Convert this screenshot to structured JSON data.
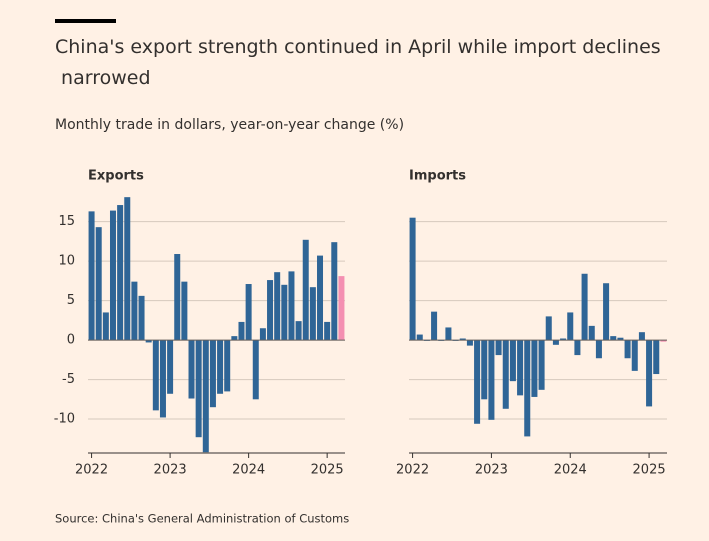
{
  "title": "China's export strength continued in April while import declines narrowed",
  "subtitle": "Monthly trade in dollars, year-on-year change (%)",
  "source": "Source: China's General Administration of Customs",
  "chart_data": [
    {
      "type": "bar",
      "title": "Exports",
      "categories": [
        null,
        null,
        null,
        null,
        null,
        null,
        null,
        null,
        null,
        null,
        null,
        null,
        null,
        null,
        null,
        null,
        null,
        null,
        null,
        null,
        null,
        null,
        null,
        null,
        null,
        null,
        null,
        null,
        null,
        null,
        null,
        null,
        null,
        null,
        null,
        null
      ],
      "values": [
        16.3,
        14.3,
        3.5,
        16.4,
        17.1,
        18.1,
        7.4,
        5.6,
        -0.3,
        -8.9,
        -9.8,
        -6.8,
        10.9,
        7.4,
        -7.4,
        -12.3,
        -14.2,
        -8.5,
        -6.8,
        -6.5,
        0.5,
        2.3,
        7.1,
        -7.5,
        1.5,
        7.6,
        8.6,
        7.0,
        8.7,
        2.4,
        12.7,
        6.7,
        10.7,
        2.3,
        12.4,
        8.1
      ],
      "color": "#2f6596",
      "highlight_color": "#f48fb1",
      "ylim": [
        -14.3,
        18.5
      ],
      "yticks": [
        -10,
        -5,
        0,
        5,
        10,
        15
      ],
      "show_ytick_labels": true,
      "xticks": [
        {
          "value": 0,
          "label": "2022"
        },
        {
          "value": 11,
          "label": "2023"
        },
        {
          "value": 22,
          "label": "2024"
        },
        {
          "value": 33,
          "label": "2025"
        }
      ],
      "grid": true
    },
    {
      "type": "bar",
      "title": "Imports",
      "categories": [
        null,
        null,
        null,
        null,
        null,
        null,
        null,
        null,
        null,
        null,
        null,
        null,
        null,
        null,
        null,
        null,
        null,
        null,
        null,
        null,
        null,
        null,
        null,
        null,
        null,
        null,
        null,
        null,
        null,
        null,
        null,
        null,
        null,
        null,
        null,
        null
      ],
      "values": [
        15.5,
        0.7,
        0.0,
        3.6,
        0.0,
        1.6,
        0.0,
        0.2,
        -0.7,
        -10.6,
        -7.5,
        -10.1,
        -1.9,
        -8.7,
        -5.2,
        -7.0,
        -12.2,
        -7.2,
        -6.3,
        3.0,
        -0.6,
        0.2,
        3.5,
        -1.9,
        8.4,
        1.8,
        -2.3,
        7.2,
        0.5,
        0.3,
        -2.3,
        -3.9,
        1.0,
        -8.4,
        -4.3,
        -0.2
      ],
      "color": "#2f6596",
      "highlight_color": "#f48fb1",
      "ylim": [
        -14.3,
        18.5
      ],
      "yticks": [
        -10,
        -5,
        0,
        5,
        10,
        15
      ],
      "show_ytick_labels": false,
      "xticks": [
        {
          "value": 0,
          "label": "2022"
        },
        {
          "value": 11,
          "label": "2023"
        },
        {
          "value": 22,
          "label": "2024"
        },
        {
          "value": 33,
          "label": "2025"
        }
      ],
      "grid": true
    }
  ]
}
